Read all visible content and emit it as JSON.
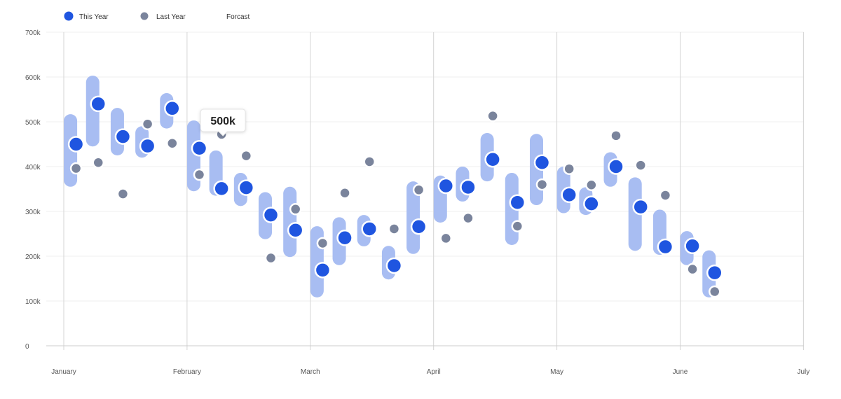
{
  "legend": {
    "this_year": "This Year",
    "last_year": "Last Year",
    "forecast": "Forcast"
  },
  "tooltip": {
    "text": "500k",
    "x_index": 6,
    "value": 500000
  },
  "colors": {
    "this_year": "#1f55e0",
    "last_year": "#7a849c",
    "forecast": "#a8bdf2",
    "grid": "#efefef",
    "axis": "#cccccc"
  },
  "chart_data": {
    "type": "scatter",
    "title": "",
    "xlabel": "",
    "ylabel": "",
    "x_ticks": [
      "January",
      "February",
      "March",
      "April",
      "May",
      "June",
      "July"
    ],
    "y_ticks": [
      "0",
      "100k",
      "200k",
      "300k",
      "400k",
      "500k",
      "600k",
      "700k"
    ],
    "ylim": [
      0,
      700000
    ],
    "grid": true,
    "legend_position": "top-left",
    "x_months": [
      0.1,
      0.28,
      0.48,
      0.68,
      0.88,
      1.1,
      1.28,
      1.48,
      1.68,
      1.88,
      2.1,
      2.28,
      2.48,
      2.68,
      2.88,
      3.1,
      3.28,
      3.48,
      3.68,
      3.88,
      4.1,
      4.28,
      4.48,
      4.68,
      4.88,
      5.1,
      5.28
    ],
    "series": [
      {
        "name": "This Year",
        "values": [
          450000,
          540000,
          467000,
          446000,
          530000,
          441000,
          351000,
          353000,
          292000,
          258000,
          169000,
          241000,
          261000,
          179000,
          266000,
          357000,
          354000,
          416000,
          320000,
          409000,
          337000,
          317000,
          400000,
          310000,
          221000,
          223000,
          163000
        ]
      },
      {
        "name": "Last Year",
        "values": [
          396000,
          409000,
          339000,
          495000,
          452000,
          382000,
          472000,
          424000,
          196000,
          305000,
          229000,
          341000,
          411000,
          261000,
          348000,
          240000,
          285000,
          513000,
          267000,
          360000,
          395000,
          359000,
          469000,
          403000,
          336000,
          171000,
          121000
        ]
      },
      {
        "name": "Forcast",
        "ranges": [
          [
            355000,
            517000
          ],
          [
            445000,
            603000
          ],
          [
            425000,
            531000
          ],
          [
            420000,
            490000
          ],
          [
            485000,
            564000
          ],
          [
            345000,
            503000
          ],
          [
            335000,
            436000
          ],
          [
            312000,
            386000
          ],
          [
            238000,
            343000
          ],
          [
            198000,
            355000
          ],
          [
            108000,
            267000
          ],
          [
            180000,
            287000
          ],
          [
            222000,
            292000
          ],
          [
            148000,
            223000
          ],
          [
            205000,
            367000
          ],
          [
            275000,
            380000
          ],
          [
            322000,
            400000
          ],
          [
            367000,
            475000
          ],
          [
            225000,
            386000
          ],
          [
            314000,
            473000
          ],
          [
            296000,
            400000
          ],
          [
            292000,
            354000
          ],
          [
            355000,
            432000
          ],
          [
            212000,
            376000
          ],
          [
            203000,
            304000
          ],
          [
            180000,
            256000
          ],
          [
            108000,
            213000
          ]
        ]
      }
    ]
  }
}
